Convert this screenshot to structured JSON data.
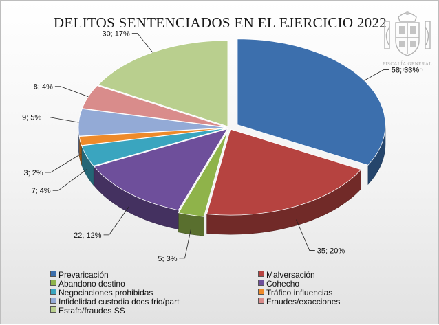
{
  "chart_data": {
    "type": "pie",
    "title": "DELITOS SENTENCIADOS EN EL EJERCICIO 2022",
    "slices": [
      {
        "name": "Prevaricación",
        "value": 58,
        "percent": 33,
        "label": "58; 33%",
        "color": "#3c6fad"
      },
      {
        "name": "Malversación",
        "value": 35,
        "percent": 20,
        "label": "35; 20%",
        "color": "#b64340"
      },
      {
        "name": "Abandono destino",
        "value": 5,
        "percent": 3,
        "label": "5; 3%",
        "color": "#8fb34a"
      },
      {
        "name": "Cohecho",
        "value": 22,
        "percent": 12,
        "label": "22; 12%",
        "color": "#6e4f9b"
      },
      {
        "name": "Negociaciones prohibidas",
        "value": 7,
        "percent": 4,
        "label": "7; 4%",
        "color": "#3aa5bf"
      },
      {
        "name": "Tráfico influencias",
        "value": 3,
        "percent": 2,
        "label": "3; 2%",
        "color": "#ee8a2a"
      },
      {
        "name": "Infidelidad custodia docs frio/part",
        "value": 9,
        "percent": 5,
        "label": "9; 5%",
        "color": "#93aad6"
      },
      {
        "name": "Fraudes/exacciones",
        "value": 8,
        "percent": 4,
        "label": "8; 4%",
        "color": "#d98c8b"
      },
      {
        "name": "Estafa/fraudes SS",
        "value": 30,
        "percent": 17,
        "label": "30; 17%",
        "color": "#b9cf8e"
      }
    ],
    "legend_position": "bottom"
  },
  "emblem": {
    "name": "coat-of-arms-icon",
    "line1": "FISCALÍA GENERAL",
    "line2": "DEL ESTADO"
  }
}
